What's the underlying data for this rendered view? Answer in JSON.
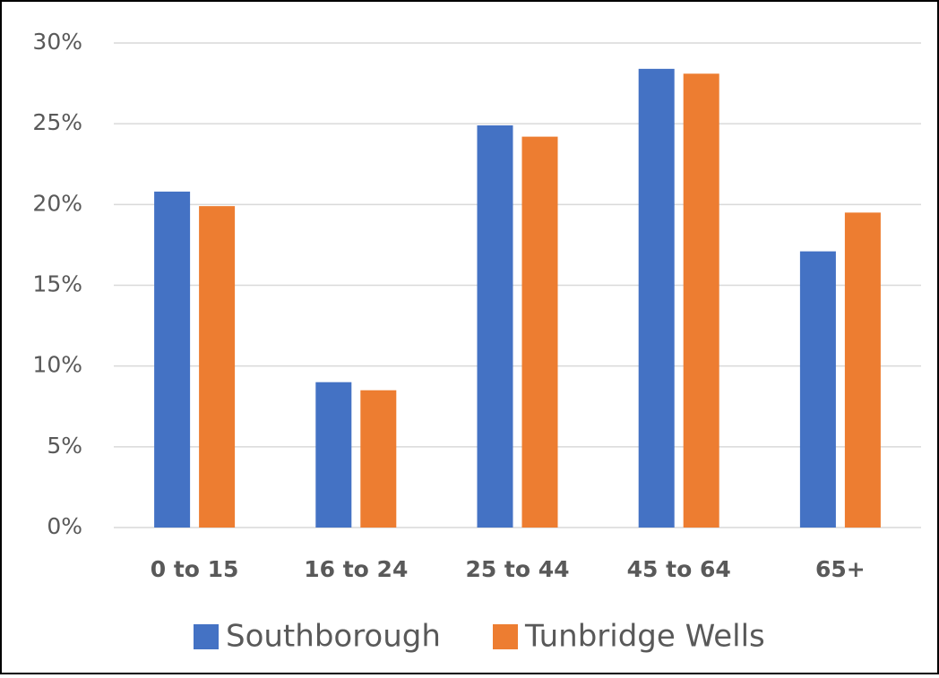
{
  "chart_data": {
    "type": "bar",
    "categories": [
      "0 to 15",
      "16 to 24",
      "25 to 44",
      "45 to 64",
      "65+"
    ],
    "series": [
      {
        "name": "Southborough",
        "color": "#4472c4",
        "values": [
          20.8,
          9.0,
          24.9,
          28.4,
          17.1
        ]
      },
      {
        "name": "Tunbridge Wells",
        "color": "#ed7d31",
        "values": [
          19.9,
          8.5,
          24.2,
          28.1,
          19.5
        ]
      }
    ],
    "ylim": [
      0,
      30
    ],
    "yticks": [
      {
        "value": 0,
        "label": "0%"
      },
      {
        "value": 5,
        "label": "5%"
      },
      {
        "value": 10,
        "label": "10%"
      },
      {
        "value": 15,
        "label": "15%"
      },
      {
        "value": 20,
        "label": "20%"
      },
      {
        "value": 25,
        "label": "25%"
      },
      {
        "value": 30,
        "label": "30%"
      }
    ],
    "grid": true,
    "legend": "bottom"
  }
}
